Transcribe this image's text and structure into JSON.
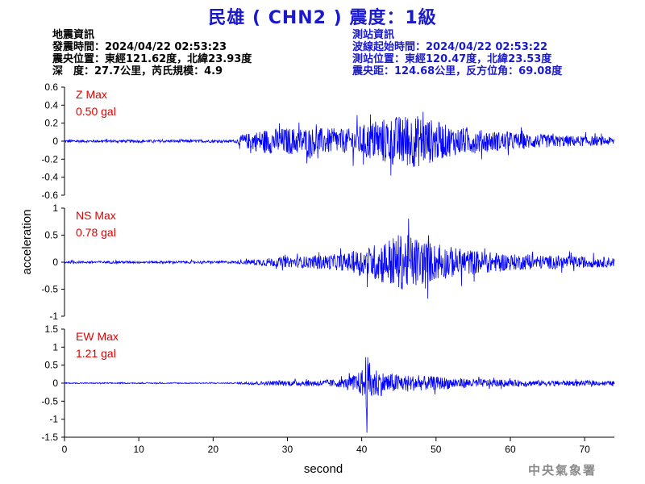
{
  "title": "民雄 ( CHN2 ) 震度：1級",
  "event_info": {
    "heading": "地震資訊",
    "origin_time": "發震時間：2024/04/22 02:53:23",
    "epicenter": "震央位置：東經121.62度，北緯23.93度",
    "depth_magnitude": "深　度：27.7公里，芮氏規模：4.9"
  },
  "station_info": {
    "heading": "測站資訊",
    "wave_start": "波線起始時間：2024/04/22 02:53:22",
    "location": "測站位置：東經120.47度，北緯23.53度",
    "distance_azimuth": "震央距：124.68公里，反方位角：69.08度"
  },
  "footer": "中央氣象署",
  "colors": {
    "trace": "#0000ff",
    "title": "#1a1acc",
    "max_label": "#e00000"
  },
  "chart_data": {
    "type": "line",
    "xlabel": "second",
    "ylabel": "acceleration",
    "xlim": [
      0,
      74
    ],
    "xticks": [
      "0",
      "10",
      "20",
      "30",
      "40",
      "50",
      "60",
      "70"
    ],
    "grid": false,
    "panels": [
      {
        "name": "Z",
        "max_label": "Z Max",
        "max_value": "0.50 gal",
        "ylim": [
          -0.6,
          0.6
        ],
        "yticks": [
          "0.6",
          "0.4",
          "0.2",
          "0",
          "-0.2",
          "-0.4",
          "-0.6"
        ],
        "envelope": [
          [
            0,
            0.02
          ],
          [
            23,
            0.02
          ],
          [
            24,
            0.1
          ],
          [
            27,
            0.18
          ],
          [
            30,
            0.2
          ],
          [
            33,
            0.2
          ],
          [
            38,
            0.18
          ],
          [
            40,
            0.24
          ],
          [
            43,
            0.34
          ],
          [
            46,
            0.4
          ],
          [
            48,
            0.38
          ],
          [
            50,
            0.3
          ],
          [
            52,
            0.22
          ],
          [
            56,
            0.17
          ],
          [
            60,
            0.13
          ],
          [
            66,
            0.09
          ],
          [
            74,
            0.06
          ]
        ]
      },
      {
        "name": "NS",
        "max_label": "NS Max",
        "max_value": "0.78 gal",
        "ylim": [
          -1,
          1
        ],
        "yticks": [
          "1",
          "0.5",
          "0",
          "-0.5",
          "-1"
        ],
        "envelope": [
          [
            0,
            0.03
          ],
          [
            23,
            0.03
          ],
          [
            24,
            0.05
          ],
          [
            27,
            0.1
          ],
          [
            33,
            0.15
          ],
          [
            38,
            0.22
          ],
          [
            41,
            0.38
          ],
          [
            43,
            0.55
          ],
          [
            45,
            0.7
          ],
          [
            47,
            0.65
          ],
          [
            50,
            0.45
          ],
          [
            53,
            0.35
          ],
          [
            56,
            0.28
          ],
          [
            60,
            0.2
          ],
          [
            66,
            0.16
          ],
          [
            74,
            0.12
          ]
        ]
      },
      {
        "name": "EW",
        "max_label": "EW Max",
        "max_value": "1.21 gal",
        "ylim": [
          -1.5,
          1.5
        ],
        "yticks": [
          "1.5",
          "1",
          "0.5",
          "0",
          "-0.5",
          "-1",
          "-1.5"
        ],
        "envelope": [
          [
            0,
            0.02
          ],
          [
            23,
            0.02
          ],
          [
            24,
            0.05
          ],
          [
            30,
            0.1
          ],
          [
            35,
            0.12
          ],
          [
            38,
            0.18
          ],
          [
            40,
            0.45
          ],
          [
            40.5,
            1.2
          ],
          [
            41.2,
            0.7
          ],
          [
            43,
            0.4
          ],
          [
            46,
            0.3
          ],
          [
            50,
            0.25
          ],
          [
            55,
            0.16
          ],
          [
            60,
            0.12
          ],
          [
            66,
            0.1
          ],
          [
            74,
            0.08
          ]
        ]
      }
    ]
  }
}
